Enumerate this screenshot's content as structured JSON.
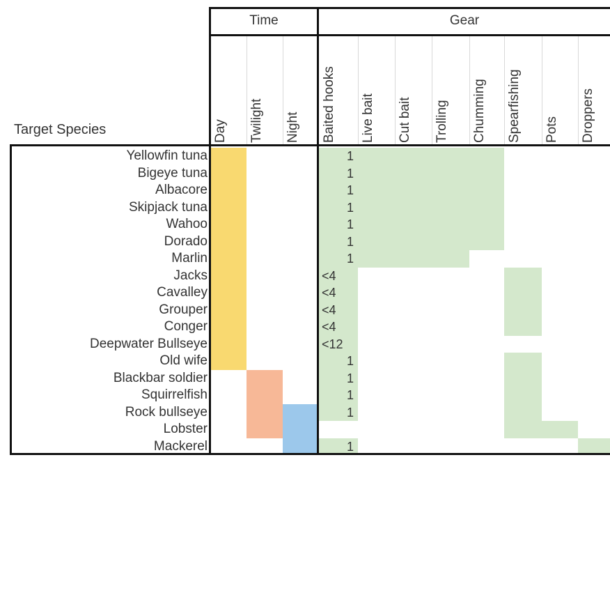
{
  "row_header": "Target Species",
  "groups": [
    {
      "key": "time",
      "label": "Time",
      "columns": [
        "Day",
        "Twilight",
        "Night"
      ]
    },
    {
      "key": "gear",
      "label": "Gear",
      "columns": [
        "Baited hooks",
        "Live bait",
        "Cut bait",
        "Trolling",
        "Chumming",
        "Spearfishing",
        "Pots",
        "Droppers"
      ]
    }
  ],
  "colors": {
    "day": "#f9d970",
    "twilight": "#f7b897",
    "night": "#9cc8eb",
    "gear": "#d4e8cc",
    "border": "#111111"
  },
  "species": [
    "Yellowfin tuna",
    "Bigeye tuna",
    "Albacore",
    "Skipjack tuna",
    "Wahoo",
    "Dorado",
    "Marlin",
    "Jacks",
    "Cavalley",
    "Grouper",
    "Conger",
    "Deepwater Bullseye",
    "Old wife",
    "Blackbar soldier",
    "Squirrelfish",
    "Rock bullseye",
    "Lobster",
    "Mackerel"
  ],
  "baited_hooks_values": [
    "1",
    "1",
    "1",
    "1",
    "1",
    "1",
    "1",
    "<4",
    "<4",
    "<4",
    "<4",
    "<12",
    "1",
    "1",
    "1",
    "1",
    "",
    "1"
  ],
  "time_bands": [
    {
      "column": "Day",
      "color_key": "day",
      "from_row": 0,
      "to_row": 12
    },
    {
      "column": "Twilight",
      "color_key": "twilight",
      "from_row": 13,
      "to_row": 16
    },
    {
      "column": "Night",
      "color_key": "night",
      "from_row": 15,
      "to_row": 17
    }
  ],
  "gear_bands": [
    {
      "from_column": "Baited hooks",
      "to_column": "Chumming",
      "from_row": 0,
      "to_row": 5
    },
    {
      "from_column": "Baited hooks",
      "to_column": "Trolling",
      "from_row": 6,
      "to_row": 6
    },
    {
      "from_column": "Baited hooks",
      "to_column": "Baited hooks",
      "from_row": 7,
      "to_row": 15
    },
    {
      "from_column": "Baited hooks",
      "to_column": "Baited hooks",
      "from_row": 17,
      "to_row": 17
    },
    {
      "from_column": "Spearfishing",
      "to_column": "Spearfishing",
      "from_row": 7,
      "to_row": 10
    },
    {
      "from_column": "Spearfishing",
      "to_column": "Spearfishing",
      "from_row": 12,
      "to_row": 16
    },
    {
      "from_column": "Pots",
      "to_column": "Pots",
      "from_row": 16,
      "to_row": 16
    },
    {
      "from_column": "Droppers",
      "to_column": "Droppers",
      "from_row": 17,
      "to_row": 17
    }
  ]
}
